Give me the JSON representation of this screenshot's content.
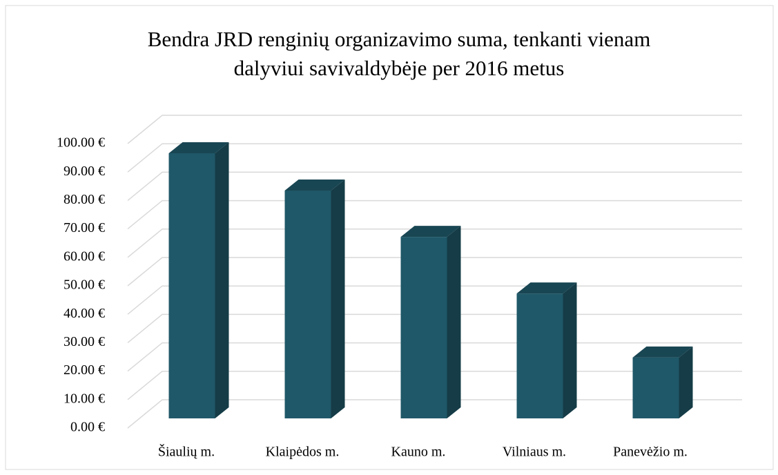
{
  "chart_data": {
    "type": "bar3d",
    "title": "Bendra JRD renginių organizavimo suma, tenkanti vienam",
    "subtitle": "dalyviui savivaldybėje per 2016 metus",
    "categories": [
      "Šiaulių m.",
      "Klaipėdos m.",
      "Kauno m.",
      "Vilniaus m.",
      "Panevėžio m."
    ],
    "values": [
      93.2,
      80.1,
      63.8,
      43.9,
      21.4
    ],
    "color": "#1f5868",
    "ylim": [
      0,
      100
    ],
    "yticks": [
      {
        "value": 0,
        "label": "0.00 €"
      },
      {
        "value": 10,
        "label": "10.00 €"
      },
      {
        "value": 20,
        "label": "20.00 €"
      },
      {
        "value": 30,
        "label": "30.00 €"
      },
      {
        "value": 40,
        "label": "40.00 €"
      },
      {
        "value": 50,
        "label": "50.00 €"
      },
      {
        "value": 60,
        "label": "60.00 €"
      },
      {
        "value": 70,
        "label": "70.00 €"
      },
      {
        "value": 80,
        "label": "80.00 €"
      },
      {
        "value": 90,
        "label": "90.00 €"
      },
      {
        "value": 100,
        "label": "100.00 €"
      }
    ],
    "grid": true
  }
}
